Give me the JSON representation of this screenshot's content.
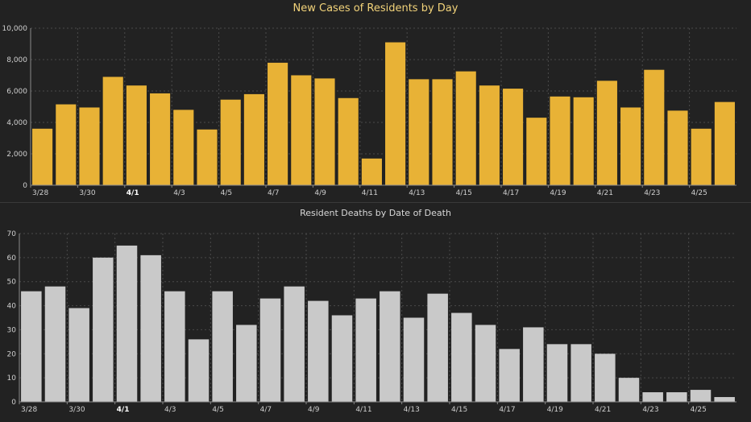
{
  "colors": {
    "background": "#222222",
    "grid": "#4a4a4a",
    "axis": "#8a8a8a",
    "cases_bar": "#e8b236",
    "deaths_bar": "#c9c9c9"
  },
  "chart_data": [
    {
      "type": "bar",
      "title": "New Cases of Residents by Day",
      "xlabel": "",
      "ylabel": "",
      "ylim": [
        0,
        10000
      ],
      "yticks": [
        0,
        2000,
        4000,
        6000,
        8000,
        10000
      ],
      "ytick_labels": [
        "0",
        "2,000",
        "4,000",
        "6,000",
        "8,000",
        "10,000"
      ],
      "grid": true,
      "categories": [
        "3/28",
        "3/29",
        "3/30",
        "3/31",
        "4/1",
        "4/2",
        "4/3",
        "4/4",
        "4/5",
        "4/6",
        "4/7",
        "4/8",
        "4/9",
        "4/10",
        "4/11",
        "4/12",
        "4/13",
        "4/14",
        "4/15",
        "4/16",
        "4/17",
        "4/18",
        "4/19",
        "4/20",
        "4/21",
        "4/22",
        "4/23",
        "4/24",
        "4/25",
        "4/26"
      ],
      "xtick_labels": [
        "3/28",
        "",
        "3/30",
        "",
        "4/1",
        "",
        "4/3",
        "",
        "4/5",
        "",
        "4/7",
        "",
        "4/9",
        "",
        "4/11",
        "",
        "4/13",
        "",
        "4/15",
        "",
        "4/17",
        "",
        "4/19",
        "",
        "4/21",
        "",
        "4/23",
        "",
        "4/25",
        ""
      ],
      "highlight_tick": "4/1",
      "values": [
        3600,
        5150,
        4950,
        6900,
        6350,
        5850,
        4800,
        3550,
        5450,
        5800,
        7800,
        7000,
        6800,
        5550,
        1700,
        9100,
        6750,
        6750,
        7250,
        6350,
        6150,
        4300,
        5650,
        5600,
        6650,
        4950,
        7350,
        4750,
        3600,
        5300
      ]
    },
    {
      "type": "bar",
      "title": "Resident Deaths by Date of Death",
      "xlabel": "",
      "ylabel": "",
      "ylim": [
        0,
        70
      ],
      "yticks": [
        0,
        10,
        20,
        30,
        40,
        50,
        60,
        70
      ],
      "ytick_labels": [
        "0",
        "10",
        "20",
        "30",
        "40",
        "50",
        "60",
        "70"
      ],
      "grid": true,
      "categories": [
        "3/28",
        "3/29",
        "3/30",
        "3/31",
        "4/1",
        "4/2",
        "4/3",
        "4/4",
        "4/5",
        "4/6",
        "4/7",
        "4/8",
        "4/9",
        "4/10",
        "4/11",
        "4/12",
        "4/13",
        "4/14",
        "4/15",
        "4/16",
        "4/17",
        "4/18",
        "4/19",
        "4/20",
        "4/21",
        "4/22",
        "4/23",
        "4/24",
        "4/25",
        "4/26"
      ],
      "xtick_labels": [
        "3/28",
        "",
        "3/30",
        "",
        "4/1",
        "",
        "4/3",
        "",
        "4/5",
        "",
        "4/7",
        "",
        "4/9",
        "",
        "4/11",
        "",
        "4/13",
        "",
        "4/15",
        "",
        "4/17",
        "",
        "4/19",
        "",
        "4/21",
        "",
        "4/23",
        "",
        "4/25",
        ""
      ],
      "highlight_tick": "4/1",
      "values": [
        46,
        48,
        39,
        60,
        65,
        61,
        46,
        26,
        46,
        32,
        43,
        48,
        42,
        36,
        43,
        46,
        35,
        45,
        37,
        32,
        22,
        31,
        24,
        24,
        20,
        10,
        4,
        4,
        5,
        2
      ]
    }
  ]
}
